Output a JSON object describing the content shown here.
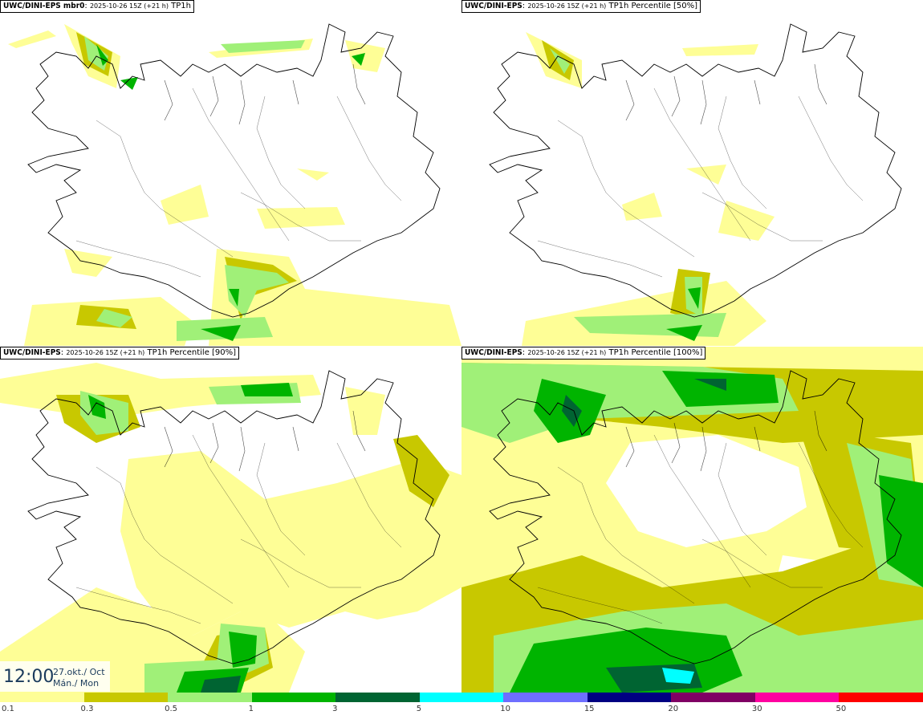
{
  "panels": [
    {
      "model": "UWC/DINI-EPS mbr0",
      "run": "2025-10-26 15Z (+21 h)",
      "field": "TP1h"
    },
    {
      "model": "UWC/DINI-EPS",
      "run": "2025-10-26 15Z (+21 h)",
      "field": "TP1h Percentile [50%]"
    },
    {
      "model": "UWC/DINI-EPS",
      "run": "2025-10-26 15Z (+21 h)",
      "field": "TP1h Percentile [90%]"
    },
    {
      "model": "UWC/DINI-EPS",
      "run": "2025-10-26 15Z (+21 h)",
      "field": "TP1h Percentile [100%]"
    }
  ],
  "valid_time": {
    "time": "12:00",
    "date": "27.okt./ Oct",
    "day": "Mán./ Mon"
  },
  "colorbar": {
    "labels": [
      "0.1",
      "0.3",
      "0.5",
      "1",
      "3",
      "5",
      "10",
      "15",
      "20",
      "30",
      "50"
    ],
    "colors": [
      "#fefe96",
      "#c8c800",
      "#a0f078",
      "#00b400",
      "#006432",
      "#00ffff",
      "#6e6eff",
      "#000082",
      "#800064",
      "#ff00a0",
      "#ff0000"
    ]
  },
  "palette": {
    "light_yellow": "#fefe96",
    "olive": "#c8c800",
    "light_green": "#a0f078",
    "green": "#00b400",
    "dark_green": "#006432",
    "cyan": "#00ffff",
    "coast": "#000000"
  }
}
